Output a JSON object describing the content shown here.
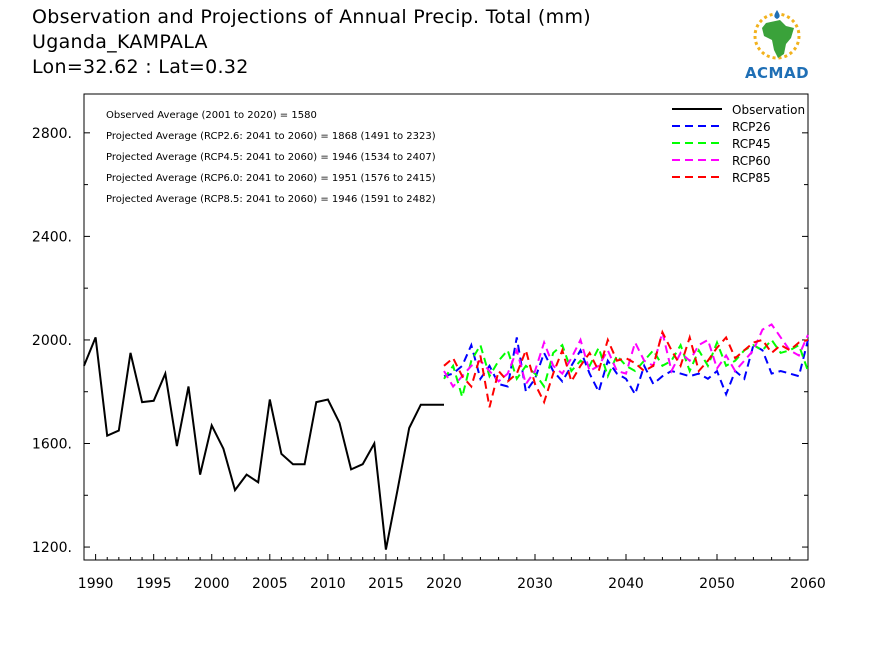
{
  "header": {
    "title_line1": "Observation and Projections of Annual Precip. Total (mm)",
    "title_line2": "Uganda_KAMPALA",
    "title_line3": "Lon=32.62 : Lat=0.32"
  },
  "logo": {
    "text": "ACMAD",
    "icon": "africa-map-sun-logo"
  },
  "chart_data": {
    "type": "line",
    "xlim": [
      1989,
      2060
    ],
    "ylim": [
      1150,
      2950
    ],
    "x_ticks": [
      1990,
      1995,
      2000,
      2005,
      2010,
      2015,
      2020,
      2030,
      2040,
      2050,
      2060
    ],
    "y_ticks": [
      1200,
      1600,
      2000,
      2400,
      2800
    ],
    "y_tick_labels": [
      "1200.",
      "1600.",
      "2000.",
      "2400.",
      "2800."
    ],
    "annotations": [
      "Observed Average (2001 to 2020) = 1580",
      "Projected Average (RCP2.6: 2041 to 2060) = 1868 (1491 to 2323)",
      "Projected Average (RCP4.5: 2041 to 2060) = 1946 (1534 to 2407)",
      "Projected Average (RCP6.0: 2041 to 2060) = 1951 (1576 to 2415)",
      "Projected Average (RCP8.5: 2041 to 2060) = 1946 (1591 to 2482)"
    ],
    "legend_position": "top-right",
    "series": [
      {
        "name": "Observation",
        "color": "#000000",
        "dash": "solid",
        "x": [
          1989,
          1990,
          1991,
          1992,
          1993,
          1994,
          1995,
          1996,
          1997,
          1998,
          1999,
          2000,
          2001,
          2002,
          2003,
          2004,
          2005,
          2006,
          2007,
          2008,
          2009,
          2010,
          2011,
          2012,
          2013,
          2014,
          2015,
          2016,
          2017,
          2018,
          2019,
          2020
        ],
        "values": [
          1900,
          2010,
          1630,
          1650,
          1950,
          1760,
          1765,
          1870,
          1590,
          1820,
          1480,
          1670,
          1580,
          1420,
          1480,
          1450,
          1770,
          1560,
          1520,
          1520,
          1760,
          1770,
          1680,
          1500,
          1520,
          1600,
          1190,
          1420,
          1660,
          1750,
          1750,
          1750
        ]
      },
      {
        "name": "RCP26",
        "color": "#0000ff",
        "dash": "dashed",
        "x": [
          2020,
          2021,
          2022,
          2023,
          2024,
          2025,
          2026,
          2027,
          2028,
          2029,
          2030,
          2031,
          2032,
          2033,
          2034,
          2035,
          2036,
          2037,
          2038,
          2039,
          2040,
          2041,
          2042,
          2043,
          2044,
          2045,
          2046,
          2047,
          2048,
          2049,
          2050,
          2051,
          2052,
          2053,
          2054,
          2055,
          2056,
          2057,
          2058,
          2059,
          2060
        ],
        "values": [
          1860,
          1870,
          1900,
          1980,
          1850,
          1900,
          1830,
          1820,
          2010,
          1800,
          1850,
          1950,
          1880,
          1840,
          1900,
          1960,
          1870,
          1800,
          1920,
          1870,
          1850,
          1790,
          1900,
          1830,
          1860,
          1880,
          1870,
          1860,
          1870,
          1850,
          1880,
          1790,
          1880,
          1850,
          1980,
          1960,
          1870,
          1880,
          1870,
          1860,
          2000
        ]
      },
      {
        "name": "RCP45",
        "color": "#00ff00",
        "dash": "dashed",
        "x": [
          2020,
          2021,
          2022,
          2023,
          2024,
          2025,
          2026,
          2027,
          2028,
          2029,
          2030,
          2031,
          2032,
          2033,
          2034,
          2035,
          2036,
          2037,
          2038,
          2039,
          2040,
          2041,
          2042,
          2043,
          2044,
          2045,
          2046,
          2047,
          2048,
          2049,
          2050,
          2051,
          2052,
          2053,
          2054,
          2055,
          2056,
          2057,
          2058,
          2059,
          2060
        ],
        "values": [
          1850,
          1900,
          1780,
          1920,
          1980,
          1860,
          1920,
          1960,
          1850,
          1900,
          1870,
          1820,
          1950,
          1980,
          1880,
          1920,
          1900,
          1970,
          1860,
          1940,
          1900,
          1880,
          1920,
          1960,
          1900,
          1920,
          1980,
          1880,
          1960,
          1900,
          1990,
          1900,
          1920,
          1960,
          1980,
          1960,
          2000,
          1950,
          1960,
          1980,
          1880
        ]
      },
      {
        "name": "RCP60",
        "color": "#ff00ff",
        "dash": "dashed",
        "x": [
          2020,
          2021,
          2022,
          2023,
          2024,
          2025,
          2026,
          2027,
          2028,
          2029,
          2030,
          2031,
          2032,
          2033,
          2034,
          2035,
          2036,
          2037,
          2038,
          2039,
          2040,
          2041,
          2042,
          2043,
          2044,
          2045,
          2046,
          2047,
          2048,
          2049,
          2050,
          2051,
          2052,
          2053,
          2054,
          2055,
          2056,
          2057,
          2058,
          2059,
          2060
        ],
        "values": [
          1880,
          1820,
          1860,
          1900,
          1920,
          1880,
          1840,
          1870,
          1960,
          1830,
          1880,
          1990,
          1900,
          1870,
          1930,
          2000,
          1880,
          1900,
          1960,
          1880,
          1870,
          1990,
          1920,
          1900,
          2030,
          1880,
          1950,
          1920,
          1980,
          2000,
          1890,
          1940,
          1880,
          1920,
          1960,
          2040,
          2060,
          2010,
          1960,
          1940,
          2020
        ]
      },
      {
        "name": "RCP85",
        "color": "#ff0000",
        "dash": "dashed",
        "x": [
          2020,
          2021,
          2022,
          2023,
          2024,
          2025,
          2026,
          2027,
          2028,
          2029,
          2030,
          2031,
          2032,
          2033,
          2034,
          2035,
          2036,
          2037,
          2038,
          2039,
          2040,
          2041,
          2042,
          2043,
          2044,
          2045,
          2046,
          2047,
          2048,
          2049,
          2050,
          2051,
          2052,
          2053,
          2054,
          2055,
          2056,
          2057,
          2058,
          2059,
          2060
        ],
        "values": [
          1900,
          1930,
          1860,
          1820,
          1940,
          1740,
          1880,
          1840,
          1870,
          1960,
          1830,
          1760,
          1870,
          1960,
          1840,
          1900,
          1950,
          1880,
          2000,
          1920,
          1930,
          1910,
          1880,
          1900,
          2030,
          1960,
          1900,
          2010,
          1880,
          1920,
          1970,
          2010,
          1930,
          1960,
          1990,
          2000,
          1950,
          1980,
          1960,
          1990,
          2000
        ]
      }
    ]
  }
}
